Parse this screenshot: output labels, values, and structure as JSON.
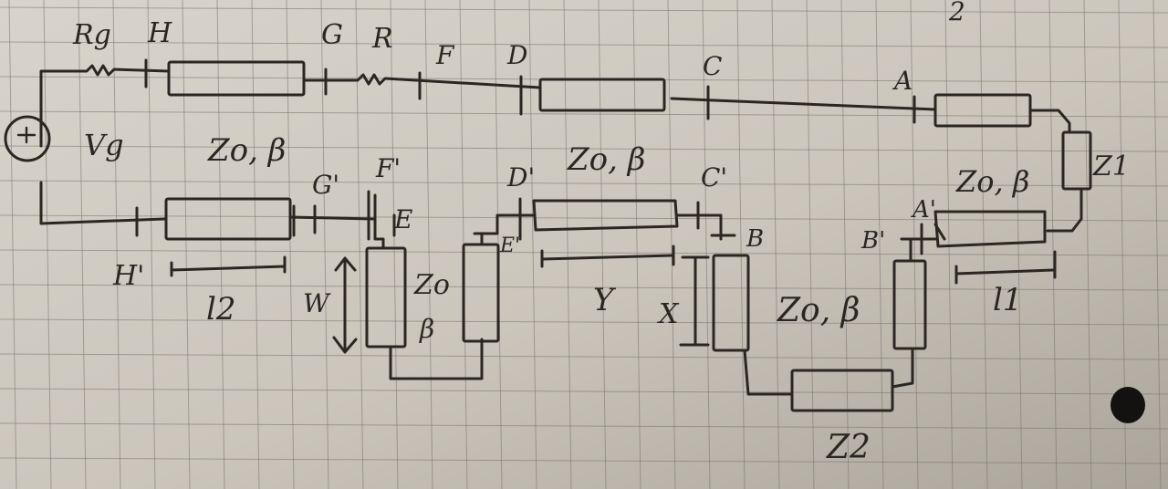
{
  "corner_mark": "2",
  "labels": {
    "rg": "Rg",
    "h": "H",
    "g": "G",
    "r": "R",
    "f": "F",
    "d": "D",
    "c": "C",
    "a": "A",
    "vg": "Vg",
    "zo_beta_1": "Zo, β",
    "g_prime": "G'",
    "f_prime": "F'",
    "e": "E",
    "d_prime": "D'",
    "e_prime": "E'",
    "zo_beta_2": "Zo, β",
    "c_prime": "C'",
    "b": "B",
    "zo_beta_3": "Zo, β",
    "z1": "Z1",
    "a_prime": "A'",
    "b_prime": "B'",
    "h_prime": "H'",
    "l2": "l2",
    "w": "W",
    "zo_stub": "Zo",
    "beta_stub": "β",
    "y": "Y",
    "x": "X",
    "zo_beta_4": "Zo, β",
    "l1": "l1",
    "z2": "Z2"
  }
}
